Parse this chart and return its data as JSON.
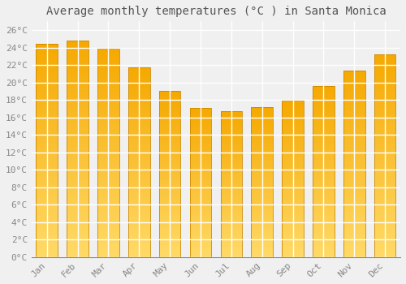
{
  "months": [
    "Jan",
    "Feb",
    "Mar",
    "Apr",
    "May",
    "Jun",
    "Jul",
    "Aug",
    "Sep",
    "Oct",
    "Nov",
    "Dec"
  ],
  "temperatures": [
    24.4,
    24.8,
    23.9,
    21.7,
    19.0,
    17.1,
    16.7,
    17.2,
    17.9,
    19.6,
    21.4,
    23.2
  ],
  "bar_color_top": "#F5A800",
  "bar_color_bottom": "#FFD966",
  "bar_edge_color": "#CC8800",
  "title": "Average monthly temperatures (°C ) in Santa Monica",
  "ylim": [
    0,
    27
  ],
  "ytick_step": 2,
  "background_color": "#f0f0f0",
  "grid_color": "#ffffff",
  "title_fontsize": 10,
  "tick_fontsize": 8,
  "tick_font_family": "monospace",
  "bar_width": 0.7,
  "gradient_steps": 100
}
